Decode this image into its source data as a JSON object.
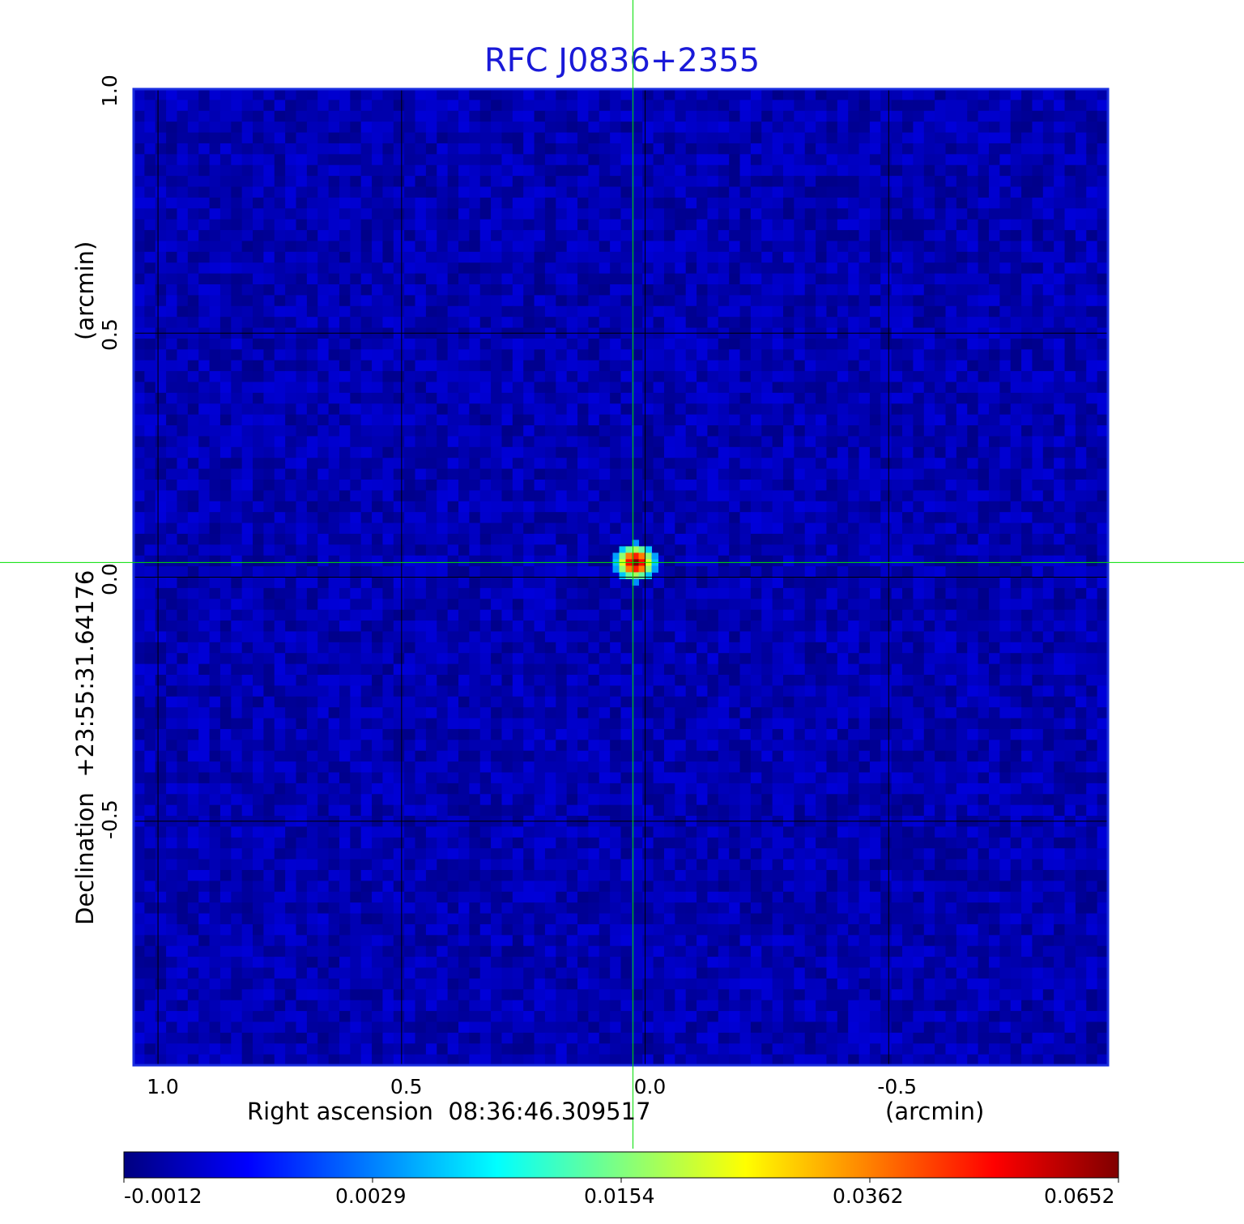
{
  "chart_data": {
    "type": "heatmap",
    "title": "RFC J0836+2355",
    "xlabel": "Right ascension  08:36:46.309517",
    "xunit": "(arcmin)",
    "ylabel": "Declination  +23:55:31.64176",
    "yunit": "(arcmin)",
    "xlim": [
      1.05,
      -0.95
    ],
    "ylim": [
      -1.0,
      1.0
    ],
    "x_ticks": [
      1.0,
      0.5,
      0.0,
      -0.5
    ],
    "x_tick_labels": [
      "1.0",
      "0.5",
      "0.0",
      "-0.5"
    ],
    "y_ticks": [
      1.0,
      0.5,
      0.0,
      -0.5
    ],
    "y_tick_labels": [
      "1.0",
      "0.5",
      "0.0",
      "-0.5"
    ],
    "grid": true,
    "crosshair": {
      "x": 0.025,
      "y": 0.03,
      "color": "#00e000"
    },
    "source_peak": {
      "x": 0.02,
      "y": 0.03,
      "value": 0.0652
    },
    "background_level": -0.0004,
    "colormap": "jet",
    "colorbar": {
      "ticks": [
        -0.0012,
        0.0029,
        0.0154,
        0.0362,
        0.0652
      ],
      "tick_labels": [
        "-0.0012",
        "0.0029",
        "0.0154",
        "0.0362",
        "0.0652"
      ]
    }
  }
}
